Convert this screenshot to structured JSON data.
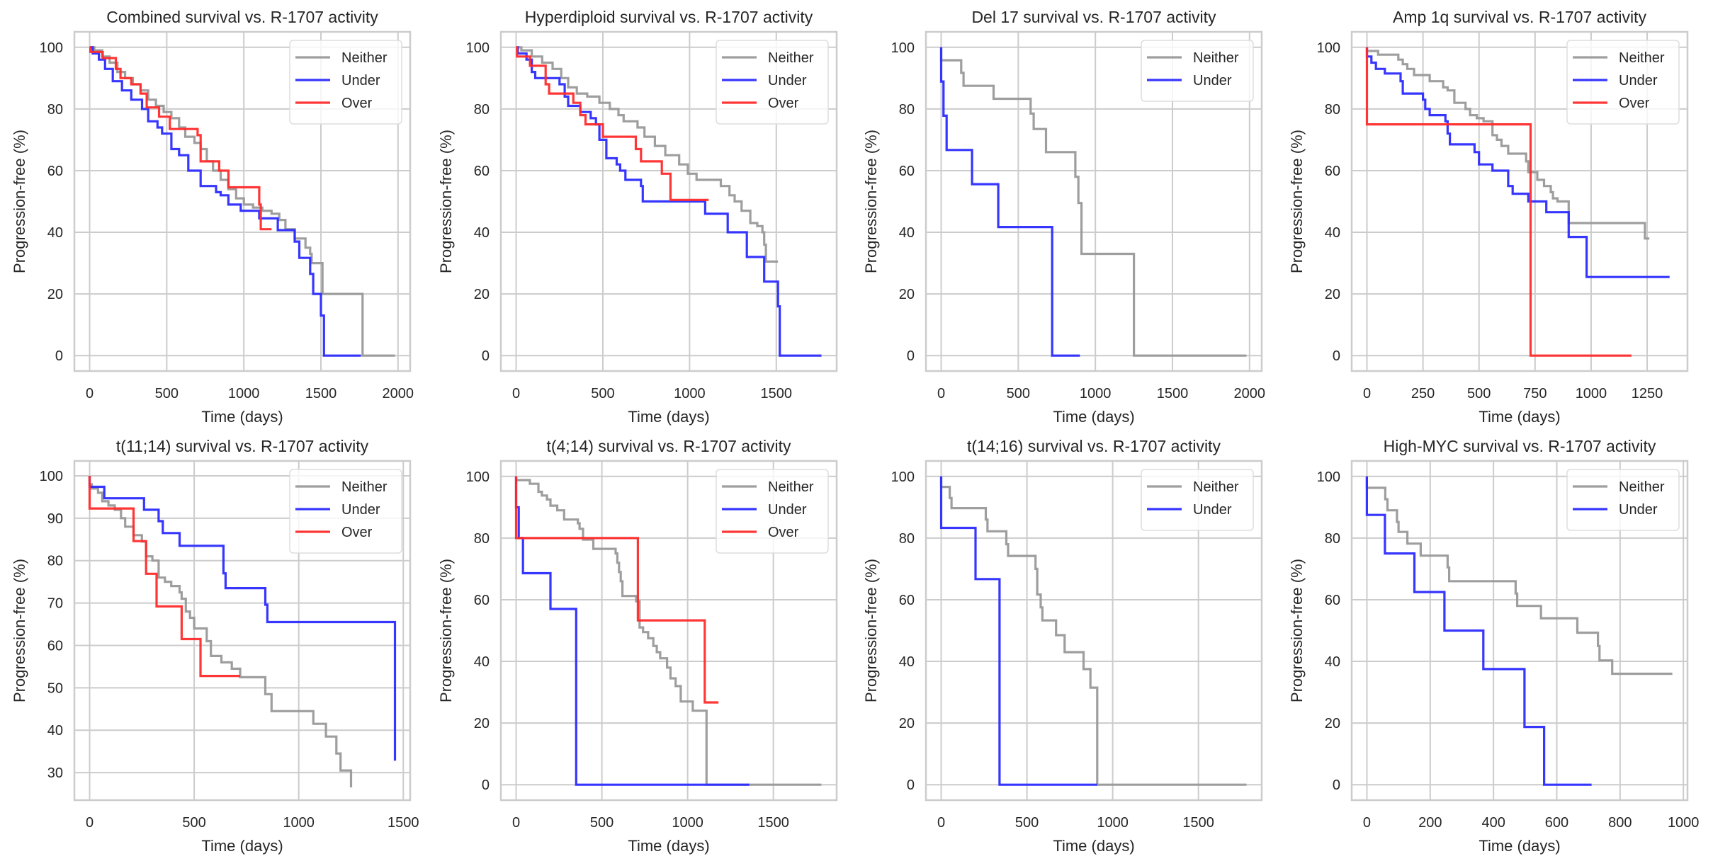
{
  "figure": {
    "colors": {
      "neither": "#999999",
      "under": "#2b2bff",
      "over": "#ff2b2b",
      "grid": "#cccccc",
      "frame": "#cccccc"
    },
    "legend_labels": {
      "neither": "Neither",
      "under": "Under",
      "over": "Over"
    }
  },
  "chart_data": [
    {
      "type": "line",
      "step": true,
      "title": "Combined survival vs. R-1707 activity",
      "xlabel": "Time (days)",
      "ylabel": "Progression-free (%)",
      "xlim": [
        -99,
        2079
      ],
      "ylim": [
        -5,
        105
      ],
      "xticks": [
        0,
        500,
        1000,
        1500,
        2000
      ],
      "yticks": [
        0,
        20,
        40,
        60,
        80,
        100
      ],
      "grid": true,
      "legend": "top-right",
      "series": [
        {
          "name": "Neither",
          "key": "neither",
          "x": [
            0,
            30,
            80,
            130,
            180,
            230,
            280,
            330,
            380,
            430,
            480,
            530,
            580,
            620,
            680,
            720,
            760,
            800,
            850,
            900,
            950,
            1000,
            1060,
            1120,
            1180,
            1230,
            1270,
            1330,
            1400,
            1430,
            1440,
            1510,
            1770,
            1980
          ],
          "y": [
            100,
            99,
            97,
            95,
            92,
            90,
            88,
            86,
            83,
            81,
            79,
            77,
            74,
            71,
            69,
            67,
            63,
            60,
            57,
            54,
            51,
            49,
            48,
            47,
            46,
            44,
            41,
            38,
            35,
            33,
            30,
            20,
            0,
            0
          ]
        },
        {
          "name": "Under",
          "key": "under",
          "x": [
            0,
            20,
            60,
            100,
            150,
            210,
            270,
            340,
            380,
            440,
            470,
            530,
            580,
            640,
            720,
            820,
            850,
            900,
            980,
            1100,
            1220,
            1330,
            1360,
            1430,
            1450,
            1500,
            1520,
            1760
          ],
          "y": [
            100,
            98,
            96,
            93,
            89,
            86,
            83,
            80,
            76,
            74,
            72,
            67,
            65,
            60,
            55,
            53,
            52,
            49,
            47,
            44.5,
            40.7,
            37,
            31.7,
            26.5,
            20,
            13,
            0,
            0
          ]
        },
        {
          "name": "Over",
          "key": "over",
          "x": [
            0,
            5,
            85,
            170,
            200,
            270,
            330,
            370,
            450,
            520,
            700,
            720,
            840,
            900,
            1100,
            1110,
            1180
          ],
          "y": [
            100,
            98.5,
            96.5,
            93,
            90,
            88,
            85,
            80.5,
            77.5,
            73.5,
            71.5,
            63,
            60,
            54.6,
            49,
            41,
            41
          ]
        }
      ]
    },
    {
      "type": "line",
      "step": true,
      "title": "Hyperdiploid survival vs. R-1707 activity",
      "xlabel": "Time (days)",
      "ylabel": "Progression-free (%)",
      "xlim": [
        -88,
        1848
      ],
      "ylim": [
        -5,
        105
      ],
      "xticks": [
        0,
        500,
        1000,
        1500
      ],
      "yticks": [
        0,
        20,
        40,
        60,
        80,
        100
      ],
      "grid": true,
      "legend": "top-right",
      "series": [
        {
          "name": "Neither",
          "key": "neither",
          "x": [
            0,
            30,
            90,
            150,
            210,
            260,
            300,
            350,
            410,
            480,
            540,
            590,
            620,
            700,
            740,
            800,
            860,
            940,
            990,
            1040,
            1180,
            1230,
            1260,
            1300,
            1350,
            1390,
            1420,
            1430,
            1440,
            1510
          ],
          "y": [
            100,
            99,
            97,
            95,
            93,
            90,
            87,
            85,
            84,
            82,
            80,
            78,
            76,
            74,
            71,
            68,
            65,
            62,
            59,
            57,
            55,
            52,
            50,
            47,
            43,
            42,
            40,
            36,
            30.5,
            30.5
          ]
        },
        {
          "name": "Under",
          "key": "under",
          "x": [
            0,
            10,
            60,
            90,
            110,
            250,
            280,
            300,
            370,
            430,
            460,
            480,
            520,
            580,
            600,
            630,
            720,
            730,
            1090,
            1220,
            1330,
            1430,
            1510,
            1520,
            1760
          ],
          "y": [
            100,
            98,
            96,
            92,
            90,
            88,
            84,
            81,
            79,
            77,
            75,
            70,
            64,
            62,
            60,
            57,
            55,
            50,
            46,
            40,
            32,
            24,
            16,
            0,
            0
          ]
        },
        {
          "name": "Over",
          "key": "over",
          "x": [
            0,
            5,
            80,
            170,
            190,
            330,
            370,
            400,
            500,
            690,
            720,
            840,
            890,
            1110
          ],
          "y": [
            100,
            97,
            94,
            88,
            85,
            82,
            78,
            75,
            71,
            67,
            63,
            59,
            50.5,
            50.5
          ]
        }
      ]
    },
    {
      "type": "line",
      "step": true,
      "title": "Del 17 survival vs. R-1707 activity",
      "xlabel": "Time (days)",
      "ylabel": "Progression-free (%)",
      "xlim": [
        -99,
        2079
      ],
      "ylim": [
        -5,
        105
      ],
      "xticks": [
        0,
        500,
        1000,
        1500,
        2000
      ],
      "yticks": [
        0,
        20,
        40,
        60,
        80,
        100
      ],
      "grid": true,
      "legend": "top-right",
      "series": [
        {
          "name": "Neither",
          "key": "neither",
          "x": [
            0,
            130,
            145,
            340,
            580,
            600,
            680,
            870,
            890,
            910,
            1250,
            1980
          ],
          "y": [
            95.8,
            91.7,
            87.5,
            83.3,
            78.5,
            73.5,
            66,
            58,
            49.5,
            33,
            0,
            0
          ]
        },
        {
          "name": "Under",
          "key": "under",
          "x": [
            0,
            15,
            35,
            200,
            370,
            720,
            900
          ],
          "y": [
            88.9,
            77.8,
            66.7,
            55.6,
            41.7,
            0,
            0
          ]
        }
      ]
    },
    {
      "type": "line",
      "step": true,
      "title": "Amp 1q survival vs. R-1707 activity",
      "xlabel": "Time (days)",
      "ylabel": "Progression-free (%)",
      "xlim": [
        -68,
        1430
      ],
      "ylim": [
        -5,
        105
      ],
      "xticks": [
        0,
        250,
        500,
        750,
        1000,
        1250
      ],
      "yticks": [
        0,
        20,
        40,
        60,
        80,
        100
      ],
      "grid": true,
      "legend": "top-right",
      "series": [
        {
          "name": "Neither",
          "key": "neither",
          "x": [
            0,
            50,
            140,
            160,
            180,
            210,
            280,
            340,
            360,
            390,
            440,
            460,
            490,
            520,
            560,
            580,
            600,
            630,
            710,
            720,
            760,
            790,
            820,
            830,
            850,
            900,
            1240,
            1260
          ],
          "y": [
            98.8,
            97.6,
            96,
            94.5,
            93,
            91,
            89,
            87,
            86,
            82,
            80,
            78,
            77,
            76,
            71.5,
            70,
            68,
            65.5,
            63,
            59.5,
            57,
            55,
            53,
            51,
            50,
            43,
            38,
            38
          ]
        },
        {
          "name": "Under",
          "key": "under",
          "x": [
            0,
            20,
            40,
            80,
            150,
            160,
            250,
            260,
            280,
            350,
            360,
            370,
            480,
            500,
            560,
            630,
            650,
            720,
            800,
            900,
            980,
            1350
          ],
          "y": [
            97,
            95,
            93,
            91.5,
            89,
            85,
            83,
            80,
            78,
            76,
            72,
            68.5,
            66,
            62,
            60,
            55,
            52.5,
            50,
            46.5,
            38.5,
            25.5,
            25.5
          ]
        },
        {
          "name": "Over",
          "key": "over",
          "x": [
            0,
            730,
            1180
          ],
          "y": [
            75,
            0,
            0
          ]
        }
      ]
    },
    {
      "type": "line",
      "step": true,
      "title": "t(11;14) survival vs. R-1707 activity",
      "xlabel": "Time (days)",
      "ylabel": "Progression-free (%)",
      "xlim": [
        -73,
        1533
      ],
      "ylim": [
        23.5,
        103.5
      ],
      "xticks": [
        0,
        500,
        1000,
        1500
      ],
      "yticks": [
        30,
        40,
        50,
        60,
        70,
        80,
        90,
        100
      ],
      "grid": true,
      "legend": "top-right",
      "series": [
        {
          "name": "Neither",
          "key": "neither",
          "x": [
            0,
            10,
            40,
            60,
            90,
            120,
            150,
            170,
            210,
            250,
            270,
            300,
            330,
            360,
            390,
            430,
            440,
            460,
            480,
            500,
            560,
            580,
            630,
            680,
            720,
            840,
            870,
            1070,
            1130,
            1180,
            1200,
            1250
          ],
          "y": [
            98,
            97,
            96,
            94,
            93,
            92,
            90,
            88,
            86,
            84.5,
            81,
            80,
            76,
            75,
            74,
            72.5,
            71,
            68,
            66.5,
            64,
            61,
            57.5,
            56,
            54.5,
            52.5,
            48.5,
            44.5,
            41.5,
            38.5,
            34.5,
            30.5,
            26.5
          ]
        },
        {
          "name": "Under",
          "key": "under",
          "x": [
            0,
            70,
            260,
            330,
            350,
            430,
            640,
            650,
            840,
            850,
            1460
          ],
          "y": [
            97.4,
            94.7,
            92,
            89.3,
            86.5,
            83.5,
            77,
            73.5,
            69.6,
            65.5,
            32.8
          ]
        },
        {
          "name": "Over",
          "key": "over",
          "x": [
            0,
            210,
            270,
            320,
            440,
            530,
            720
          ],
          "y": [
            92.3,
            84.6,
            76.9,
            69.2,
            61.5,
            52.8,
            52.8
          ]
        }
      ]
    },
    {
      "type": "line",
      "step": true,
      "title": "t(4;14) survival vs. R-1707 activity",
      "xlabel": "Time (days)",
      "ylabel": "Progression-free (%)",
      "xlim": [
        -89,
        1869
      ],
      "ylim": [
        -5,
        105
      ],
      "xticks": [
        0,
        500,
        1000,
        1500
      ],
      "yticks": [
        0,
        20,
        40,
        60,
        80,
        100
      ],
      "grid": true,
      "legend": "top-right",
      "series": [
        {
          "name": "Neither",
          "key": "neither",
          "x": [
            0,
            80,
            130,
            150,
            180,
            200,
            240,
            280,
            360,
            370,
            390,
            450,
            580,
            590,
            600,
            610,
            620,
            700,
            720,
            740,
            770,
            800,
            820,
            840,
            880,
            900,
            930,
            960,
            1030,
            1110,
            1780
          ],
          "y": [
            98.8,
            97.6,
            95,
            93.8,
            92.5,
            90.5,
            89,
            86,
            84.8,
            83,
            79.5,
            76.5,
            75,
            72,
            69,
            66,
            61.2,
            59.5,
            51,
            49.5,
            47.5,
            45,
            43,
            41,
            38,
            34.5,
            32,
            27,
            24,
            0,
            0
          ]
        },
        {
          "name": "Under",
          "key": "under",
          "x": [
            0,
            15,
            40,
            200,
            350,
            1360
          ],
          "y": [
            90,
            80,
            68.6,
            57,
            0,
            0
          ]
        },
        {
          "name": "Over",
          "key": "over",
          "x": [
            0,
            710,
            1100,
            1180
          ],
          "y": [
            80,
            53.3,
            26.7,
            26.7
          ]
        }
      ]
    },
    {
      "type": "line",
      "step": true,
      "title": "t(14;16) survival vs. R-1707 activity",
      "xlabel": "Time (days)",
      "ylabel": "Progression-free (%)",
      "xlim": [
        -89,
        1869
      ],
      "ylim": [
        -5,
        105
      ],
      "xticks": [
        0,
        500,
        1000,
        1500
      ],
      "yticks": [
        0,
        20,
        40,
        60,
        80,
        100
      ],
      "grid": true,
      "legend": "top-right",
      "series": [
        {
          "name": "Neither",
          "key": "neither",
          "x": [
            0,
            50,
            60,
            260,
            270,
            380,
            390,
            550,
            560,
            580,
            590,
            670,
            720,
            830,
            870,
            910,
            1780
          ],
          "y": [
            96.6,
            93,
            89.7,
            86,
            82.2,
            78,
            74.2,
            70,
            61.7,
            57.5,
            53.3,
            48.5,
            43,
            37.5,
            31.5,
            0,
            0
          ]
        },
        {
          "name": "Under",
          "key": "under",
          "x": [
            0,
            200,
            340,
            910
          ],
          "y": [
            83.3,
            66.7,
            0,
            0
          ]
        }
      ]
    },
    {
      "type": "line",
      "step": true,
      "title": "High-MYC survival vs. R-1707 activity",
      "xlabel": "Time (days)",
      "ylabel": "Progression-free (%)",
      "xlim": [
        -48,
        1013
      ],
      "ylim": [
        -5,
        105
      ],
      "xticks": [
        0,
        200,
        400,
        600,
        800,
        1000
      ],
      "yticks": [
        0,
        20,
        40,
        60,
        80,
        100
      ],
      "grid": true,
      "legend": "top-right",
      "series": [
        {
          "name": "Neither",
          "key": "neither",
          "x": [
            0,
            58,
            65,
            95,
            100,
            105,
            128,
            170,
            255,
            260,
            265,
            470,
            475,
            480,
            550,
            555,
            665,
            730,
            735,
            775,
            965
          ],
          "y": [
            96.3,
            92.6,
            89,
            85.2,
            82,
            82,
            78.2,
            74.3,
            70.5,
            66,
            66,
            62,
            58,
            58,
            54,
            54,
            49.3,
            45,
            40.3,
            36,
            36
          ]
        },
        {
          "name": "Under",
          "key": "under",
          "x": [
            0,
            57,
            150,
            245,
            368,
            498,
            560,
            710
          ],
          "y": [
            87.5,
            75,
            62.5,
            50,
            37.5,
            18.75,
            0,
            0
          ]
        }
      ]
    }
  ]
}
